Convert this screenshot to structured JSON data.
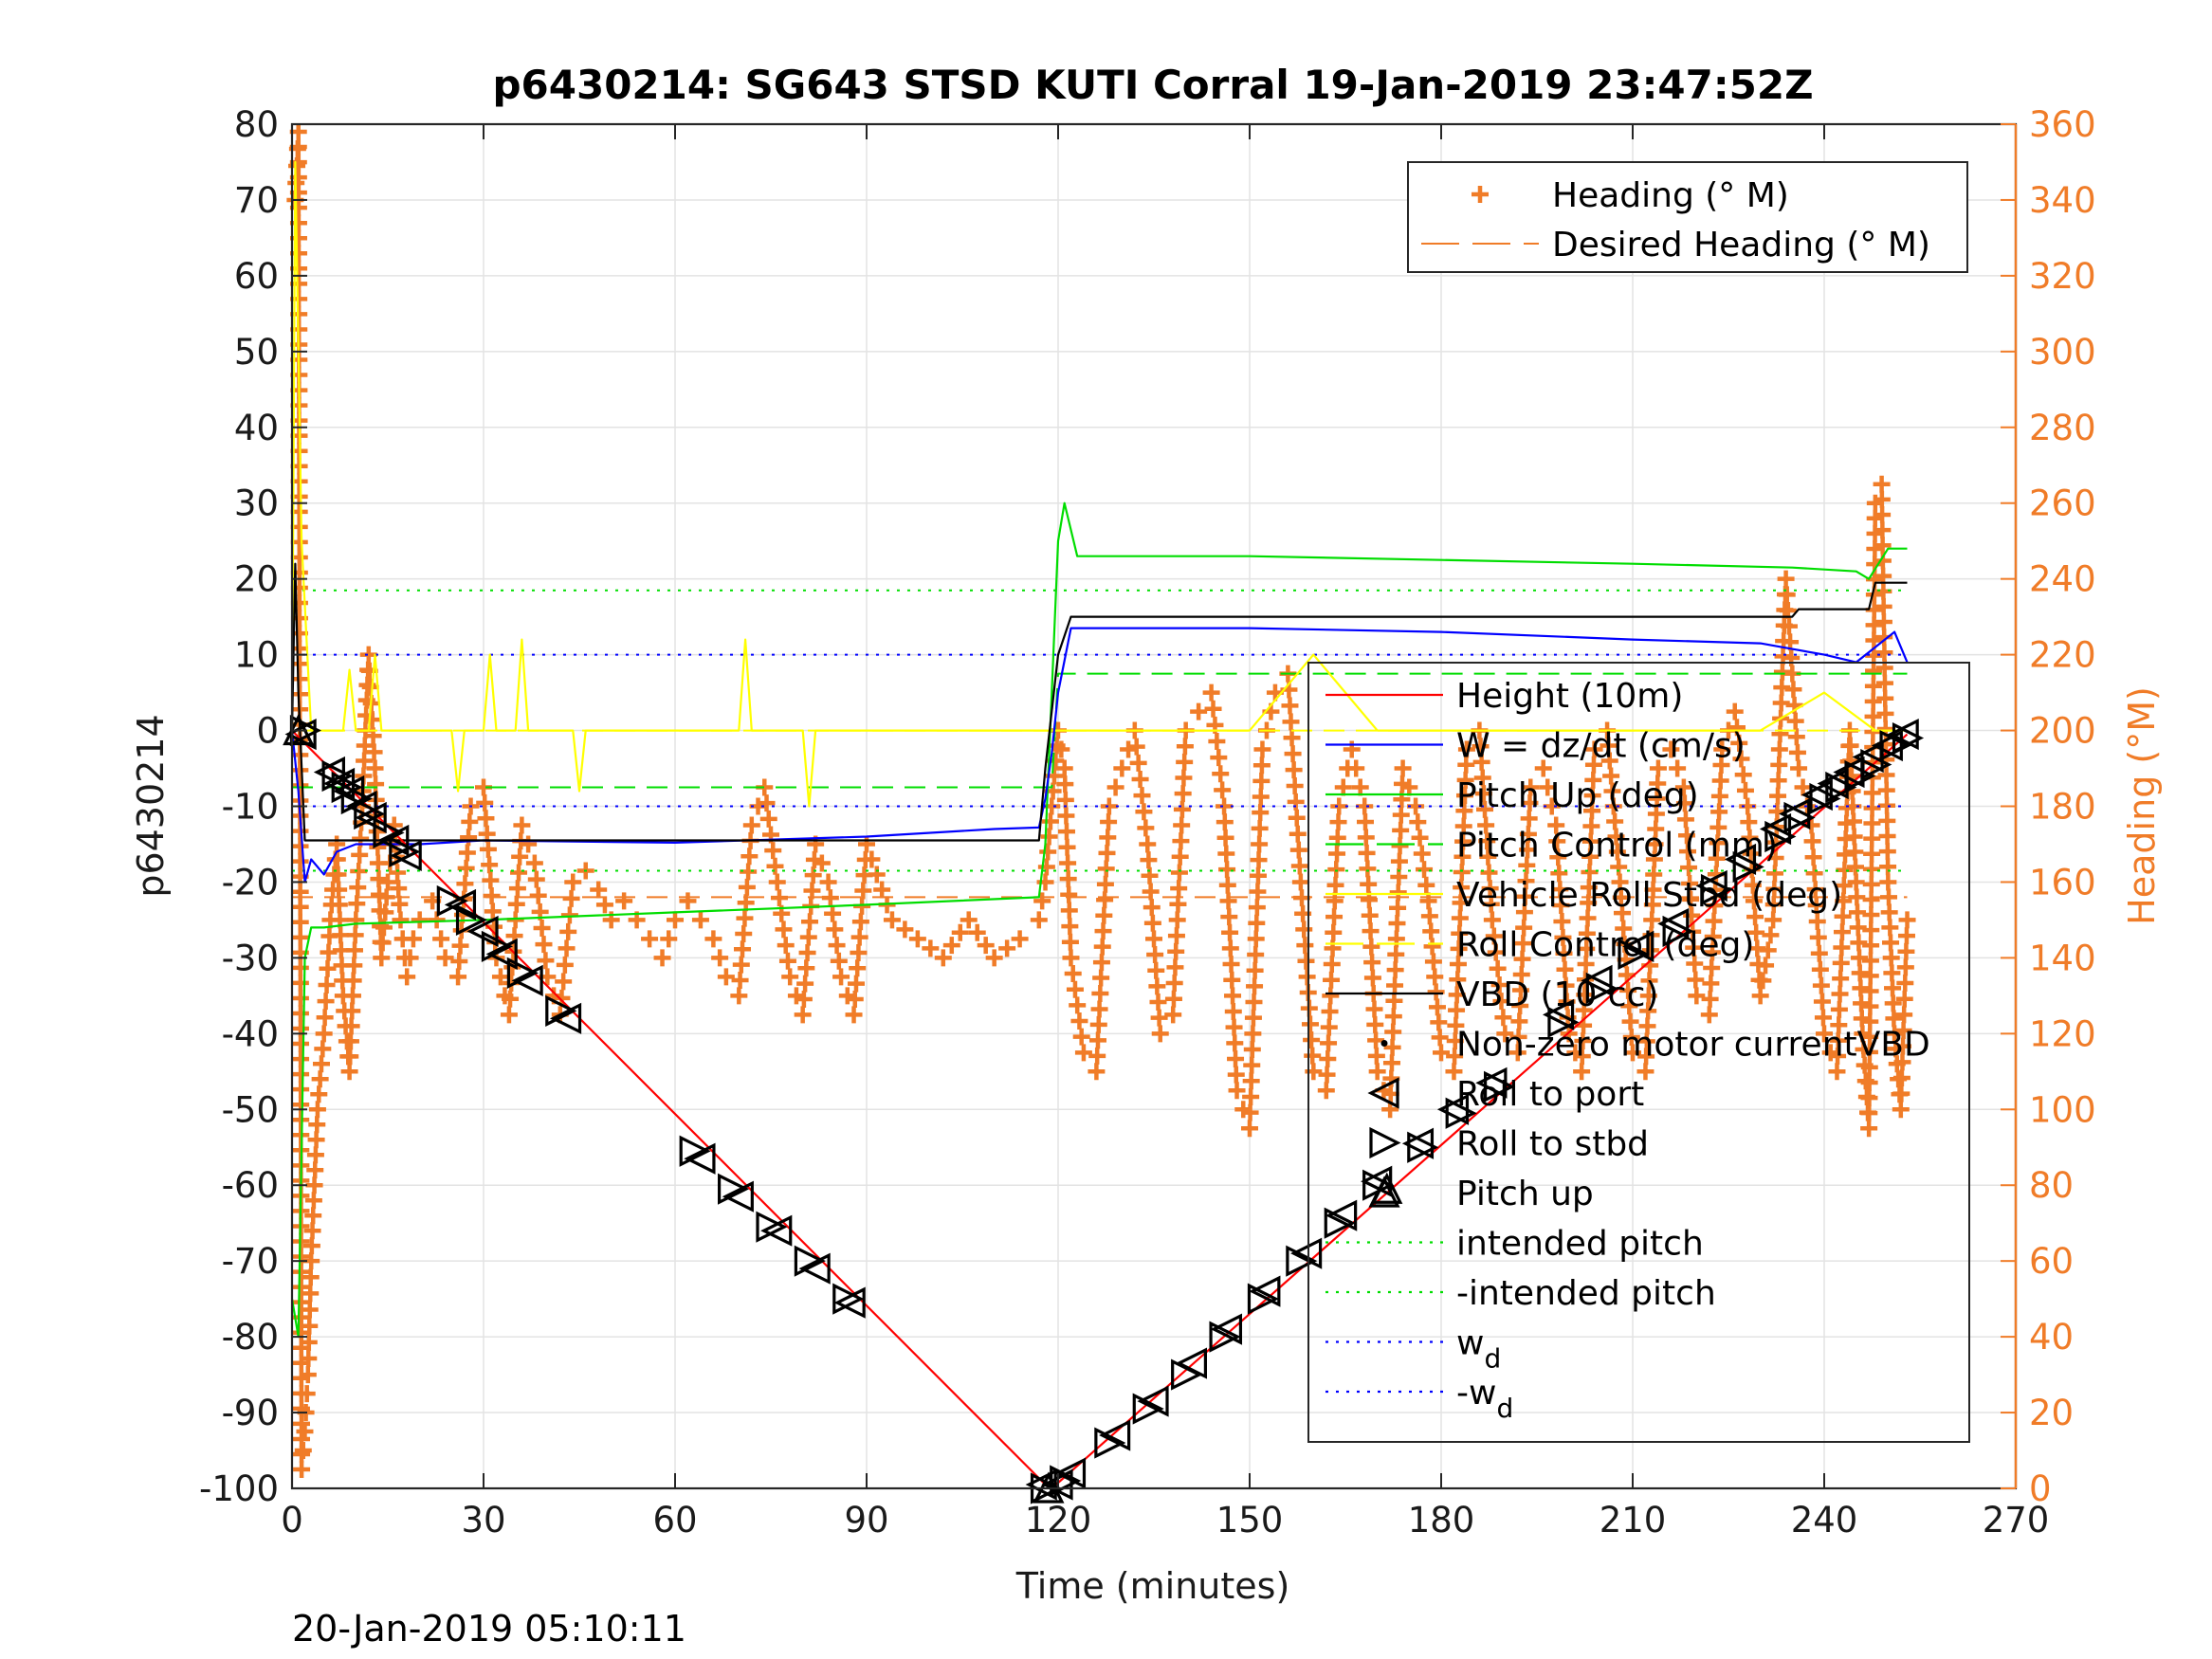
{
  "chart_data": {
    "type": "line",
    "title": "p6430214: SG643 STSD KUTI Corral 19-Jan-2019 23:47:52Z",
    "xlabel": "Time (minutes)",
    "ylabel": "p6430214",
    "y2label": "Heading (°M)",
    "xlim": [
      0,
      270
    ],
    "ylim": [
      -100,
      80
    ],
    "y2lim": [
      0,
      360
    ],
    "xticks": [
      "0",
      "30",
      "60",
      "90",
      "120",
      "150",
      "180",
      "210",
      "240",
      "270"
    ],
    "yticks": [
      "80",
      "70",
      "60",
      "50",
      "40",
      "30",
      "20",
      "10",
      "0",
      "-10",
      "-20",
      "-30",
      "-40",
      "-50",
      "-60",
      "-70",
      "-80",
      "-90",
      "-100"
    ],
    "y2ticks": [
      "360",
      "340",
      "320",
      "300",
      "280",
      "260",
      "240",
      "220",
      "200",
      "180",
      "160",
      "140",
      "120",
      "100",
      "80",
      "60",
      "40",
      "20",
      "0"
    ],
    "grid": true,
    "footer": "20-Jan-2019 05:10:11",
    "colors": {
      "height": "#ff0000",
      "w": "#0000ff",
      "pitch": "#00dd00",
      "roll": "#ffff00",
      "vbd": "#000000",
      "heading": "#f07c28"
    },
    "legend_right": [
      {
        "label": "Heading (° M)",
        "style": "plus",
        "color": "#f07c28"
      },
      {
        "label": "Desired Heading (° M)",
        "style": "dash",
        "color": "#f07c28"
      }
    ],
    "legend_left": [
      {
        "label": "Height (10m)",
        "style": "line",
        "color": "#ff0000"
      },
      {
        "label": "W = dz/dt (cm/s)",
        "style": "line",
        "color": "#0000ff"
      },
      {
        "label": "Pitch Up (deg)",
        "style": "line",
        "color": "#00dd00"
      },
      {
        "label": "Pitch Control (mm)",
        "style": "dash",
        "color": "#00dd00"
      },
      {
        "label": "Vehicle Roll Stbd (deg)",
        "style": "line",
        "color": "#ffff00"
      },
      {
        "label": "Roll Control (deg)",
        "style": "dash",
        "color": "#ffff00"
      },
      {
        "label": "VBD (10 cc)",
        "style": "line",
        "color": "#000000"
      },
      {
        "label": "Non-zero motor currentVBD",
        "style": "dot",
        "color": "#000000"
      },
      {
        "label": "Roll to port",
        "style": "tri-left",
        "color": "#000000"
      },
      {
        "label": "Roll to stbd",
        "style": "tri-right",
        "color": "#000000"
      },
      {
        "label": "Pitch up",
        "style": "tri-up",
        "color": "#000000"
      },
      {
        "label": "intended pitch",
        "style": "dotted",
        "color": "#00dd00"
      },
      {
        "label": "-intended pitch",
        "style": "dotted",
        "color": "#00dd00"
      },
      {
        "label": "w",
        "sub": "d",
        "style": "dotted",
        "color": "#0000ff"
      },
      {
        "label": "-w",
        "sub": "d",
        "style": "dotted",
        "color": "#0000ff"
      }
    ],
    "series": [
      {
        "name": "Height (10m)",
        "axis": "left",
        "style": "line",
        "color": "#ff0000",
        "x": [
          0,
          118,
          119,
          253
        ],
        "y": [
          0,
          -99.5,
          -100,
          -0.5
        ]
      },
      {
        "name": "W = dz/dt (cm/s)",
        "axis": "left",
        "style": "line",
        "color": "#0000ff",
        "x": [
          0,
          1,
          2,
          3,
          5,
          7,
          10,
          15,
          20,
          30,
          60,
          90,
          100,
          110,
          117,
          118,
          119,
          120,
          122,
          130,
          150,
          180,
          210,
          230,
          240,
          245,
          248,
          251,
          253
        ],
        "y": [
          0,
          -8,
          -20,
          -17,
          -19,
          -16,
          -15,
          -15,
          -15,
          -14.5,
          -14.8,
          -14,
          -13.5,
          -13,
          -12.8,
          -9,
          -3,
          5,
          13.5,
          13.5,
          13.5,
          13,
          12,
          11.5,
          10,
          9,
          11,
          13,
          9
        ]
      },
      {
        "name": "Pitch Up (deg)",
        "axis": "left",
        "style": "line",
        "color": "#00dd00",
        "x": [
          0,
          1,
          2,
          3,
          5,
          10,
          30,
          60,
          90,
          117,
          118,
          119,
          120,
          121,
          123,
          150,
          180,
          210,
          235,
          245,
          247,
          250,
          253
        ],
        "y": [
          -75,
          -80,
          -30,
          -26,
          -26,
          -25.5,
          -25,
          -24,
          -23,
          -22,
          -15,
          5,
          25,
          30,
          23,
          23,
          22.5,
          22,
          21.5,
          21,
          20,
          24,
          24
        ]
      },
      {
        "name": "Pitch Control (mm)",
        "axis": "left",
        "style": "dash",
        "color": "#00dd00",
        "x": [
          0,
          119,
          120,
          253
        ],
        "y": [
          -7.5,
          -7.5,
          7.5,
          7.5
        ]
      },
      {
        "name": "Vehicle Roll Stbd (deg)",
        "axis": "left",
        "style": "line",
        "color": "#ffff00",
        "x": [
          0,
          0.5,
          1.5,
          3,
          8,
          9,
          10,
          12,
          13,
          14,
          25,
          26,
          27,
          30,
          31,
          32,
          35,
          36,
          37,
          38,
          44,
          45,
          46,
          60,
          70,
          71,
          72,
          80,
          81,
          82,
          117,
          120,
          150,
          160,
          170,
          200,
          230,
          240,
          248,
          253
        ],
        "y": [
          0,
          75,
          25,
          0,
          0,
          8,
          0,
          0,
          10,
          0,
          0,
          -8,
          0,
          0,
          10,
          0,
          0,
          12,
          0,
          0,
          0,
          -8,
          0,
          0,
          0,
          12,
          0,
          0,
          -10,
          0,
          0,
          0,
          0,
          10,
          0,
          0,
          0,
          5,
          0,
          0
        ]
      },
      {
        "name": "Roll Control (deg)",
        "axis": "left",
        "style": "dash",
        "color": "#ffff00",
        "x": [
          0,
          253
        ],
        "y": [
          0,
          0
        ]
      },
      {
        "name": "VBD (10 cc)",
        "axis": "left",
        "style": "line",
        "color": "#000000",
        "x": [
          0,
          0.5,
          1,
          2,
          5,
          117,
          118,
          120,
          122,
          200,
          235,
          236,
          247,
          248,
          253
        ],
        "y": [
          0,
          22,
          5,
          -14.5,
          -14.5,
          -14.5,
          -5,
          10,
          15,
          15,
          15,
          16,
          16,
          19.5,
          19.5
        ]
      },
      {
        "name": "intended pitch",
        "axis": "left",
        "style": "dotted",
        "color": "#00dd00",
        "x": [
          0,
          253
        ],
        "y": [
          18.5,
          18.5
        ]
      },
      {
        "name": "-intended pitch",
        "axis": "left",
        "style": "dotted",
        "color": "#00dd00",
        "x": [
          0,
          253
        ],
        "y": [
          -18.5,
          -18.5
        ]
      },
      {
        "name": "w",
        "axis": "left",
        "style": "dotted",
        "color": "#0000ff",
        "x": [
          0,
          253
        ],
        "y": [
          10,
          10
        ]
      },
      {
        "name": "-w",
        "axis": "left",
        "style": "dotted",
        "color": "#0000ff",
        "x": [
          0,
          253
        ],
        "y": [
          -10,
          -10
        ]
      },
      {
        "name": "Desired Heading (° M)",
        "axis": "right",
        "style": "dash",
        "color": "#f07c28",
        "x": [
          0,
          253
        ],
        "y": [
          156,
          156
        ]
      },
      {
        "name": "Heading (° M)",
        "axis": "right",
        "style": "plus",
        "color": "#f07c28",
        "x": [
          0.5,
          1,
          1.5,
          2,
          2.5,
          3,
          4,
          5,
          6,
          7,
          8,
          9,
          10,
          11,
          12,
          13,
          14,
          15,
          16,
          17,
          18,
          19,
          20,
          22,
          24,
          26,
          28,
          30,
          32,
          34,
          36,
          38,
          40,
          42,
          44,
          46,
          48,
          50,
          52,
          54,
          56,
          58,
          60,
          62,
          64,
          66,
          68,
          70,
          72,
          74,
          76,
          78,
          80,
          82,
          84,
          86,
          88,
          90,
          94,
          98,
          102,
          106,
          110,
          114,
          117,
          118,
          119,
          120,
          121,
          122,
          124,
          126,
          128,
          130,
          132,
          134,
          136,
          138,
          140,
          142,
          144,
          146,
          148,
          150,
          152,
          154,
          156,
          158,
          160,
          162,
          164,
          166,
          168,
          170,
          172,
          174,
          176,
          178,
          180,
          182,
          184,
          186,
          188,
          190,
          192,
          194,
          196,
          198,
          200,
          202,
          204,
          206,
          208,
          210,
          212,
          214,
          216,
          218,
          220,
          222,
          224,
          226,
          228,
          230,
          232,
          234,
          236,
          238,
          240,
          242,
          244,
          246,
          247,
          248,
          249,
          250,
          251,
          252,
          253
        ],
        "y": [
          340,
          358,
          5,
          15,
          30,
          60,
          100,
          120,
          150,
          170,
          130,
          110,
          150,
          180,
          220,
          190,
          140,
          160,
          175,
          150,
          135,
          145,
          150,
          155,
          140,
          135,
          180,
          185,
          140,
          125,
          175,
          165,
          135,
          125,
          160,
          163,
          158,
          150,
          155,
          150,
          145,
          140,
          150,
          155,
          150,
          145,
          135,
          130,
          175,
          185,
          160,
          135,
          125,
          170,
          160,
          135,
          125,
          170,
          150,
          145,
          140,
          150,
          140,
          145,
          150,
          160,
          180,
          200,
          190,
          140,
          115,
          110,
          180,
          190,
          200,
          170,
          120,
          125,
          200,
          205,
          210,
          180,
          105,
          95,
          195,
          210,
          215,
          160,
          110,
          105,
          180,
          195,
          180,
          110,
          100,
          190,
          180,
          155,
          115,
          110,
          195,
          200,
          150,
          120,
          115,
          185,
          190,
          175,
          120,
          110,
          195,
          200,
          160,
          115,
          110,
          190,
          195,
          185,
          130,
          125,
          195,
          205,
          180,
          130,
          150,
          240,
          190,
          175,
          120,
          110,
          200,
          120,
          95,
          260,
          265,
          160,
          120,
          100,
          150
        ]
      },
      {
        "name": "Roll to port",
        "axis": "left",
        "style": "tri-left",
        "color": "#000000",
        "x": [
          1.5,
          6,
          7.5,
          9,
          11,
          12.5,
          16,
          18,
          26.5,
          30,
          33,
          37,
          43,
          64,
          70,
          76,
          82,
          87.5,
          117.5,
          120,
          122,
          129,
          135,
          141,
          146.5,
          152.5,
          159,
          164.5,
          170,
          176.5,
          182,
          188,
          198.5,
          204.5,
          211,
          216.5,
          222.5,
          227,
          232.5,
          235.5,
          239,
          241.5,
          244,
          247,
          250,
          252.5
        ],
        "y": [
          -0.5,
          -5.5,
          -7,
          -8,
          -10,
          -11.5,
          -14.5,
          -16.5,
          -23,
          -26.5,
          -29.5,
          -33,
          -38,
          -56.5,
          -61.5,
          -66,
          -71,
          -75.5,
          -99.5,
          -99.5,
          -98,
          -93,
          -88.5,
          -83.5,
          -79,
          -74,
          -69,
          -64,
          -59.5,
          -54.5,
          -50,
          -46.5,
          -37.5,
          -33,
          -28.5,
          -25.5,
          -20.5,
          -17,
          -13,
          -11,
          -8.5,
          -7,
          -5.5,
          -3.5,
          -2,
          -0.5
        ]
      },
      {
        "name": "Roll to stbd",
        "axis": "left",
        "style": "tri-right",
        "color": "#000000",
        "x": [
          2,
          7,
          8.5,
          10,
          12,
          15,
          17.5,
          25,
          28,
          32,
          36,
          42,
          63,
          69,
          75,
          81,
          87,
          118,
          121,
          128,
          134,
          140,
          146,
          152,
          158,
          164,
          170,
          177,
          183,
          189,
          199,
          205,
          210,
          217,
          223,
          228,
          233,
          236,
          240,
          242.5,
          245.5,
          248,
          251,
          253
        ],
        "y": [
          0,
          -6,
          -7.5,
          -9,
          -11,
          -13.5,
          -16,
          -22.5,
          -25,
          -28.5,
          -32,
          -37,
          -55.5,
          -60.5,
          -65.5,
          -70,
          -75,
          -100,
          -99,
          -94,
          -89.5,
          -85,
          -80,
          -75,
          -70,
          -65,
          -60,
          -55,
          -50.5,
          -47,
          -38.5,
          -34,
          -29.5,
          -26.5,
          -21,
          -18,
          -14,
          -11.5,
          -9,
          -7.5,
          -6,
          -4.5,
          -2,
          -1
        ]
      },
      {
        "name": "Pitch up",
        "axis": "left",
        "style": "tri-up",
        "color": "#000000",
        "x": [
          1,
          118.5,
          171.5
        ],
        "y": [
          0,
          -100,
          -60.5
        ]
      }
    ]
  }
}
